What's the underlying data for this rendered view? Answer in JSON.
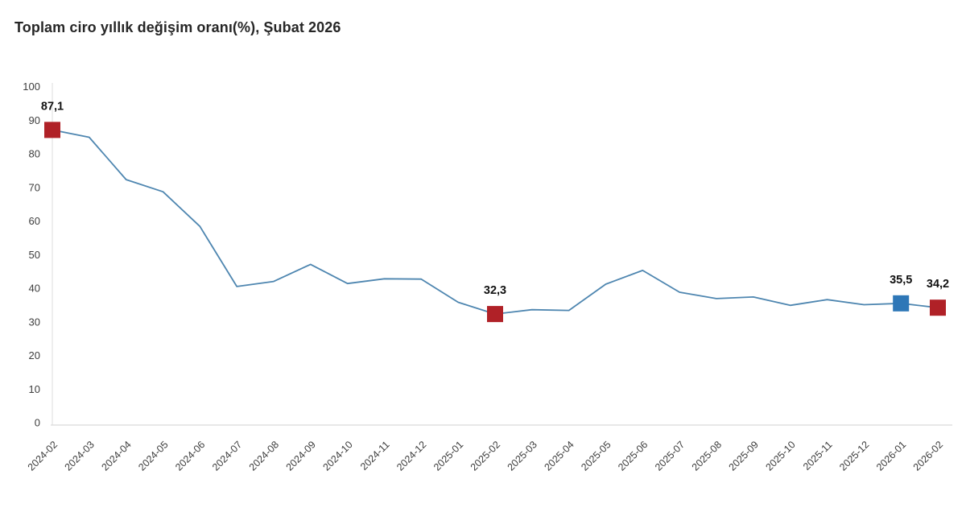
{
  "page": {
    "background": "#ffffff"
  },
  "chart_data": {
    "type": "line",
    "title": "Toplam ciro yıllık değişim oranı(%), Şubat 2026",
    "categories": [
      "2024-02",
      "2024-03",
      "2024-04",
      "2024-05",
      "2024-06",
      "2024-07",
      "2024-08",
      "2024-09",
      "2024-10",
      "2024-11",
      "2024-12",
      "2025-01",
      "2025-02",
      "2025-03",
      "2025-04",
      "2025-05",
      "2025-06",
      "2025-07",
      "2025-08",
      "2025-09",
      "2025-10",
      "2025-11",
      "2025-12",
      "2026-01",
      "2026-02"
    ],
    "values": [
      87.1,
      84.9,
      72.3,
      68.7,
      58.4,
      40.5,
      42.0,
      47.1,
      41.4,
      42.8,
      42.7,
      35.8,
      32.3,
      33.6,
      33.4,
      41.2,
      45.3,
      38.8,
      36.9,
      37.4,
      34.9,
      36.6,
      35.1,
      35.5,
      34.2
    ],
    "xlabel": "",
    "ylabel": "",
    "ylim": [
      0,
      100
    ],
    "y_ticks": [
      0,
      10,
      20,
      30,
      40,
      50,
      60,
      70,
      80,
      90,
      100
    ],
    "grid": "none",
    "legend": "none",
    "x_label_rotation": -45,
    "highlights": [
      {
        "category": "2024-02",
        "index": 0,
        "value": 87.1,
        "label": "87,1",
        "color": "#b02127"
      },
      {
        "category": "2025-02",
        "index": 12,
        "value": 32.3,
        "label": "32,3",
        "color": "#b02127"
      },
      {
        "category": "2026-01",
        "index": 23,
        "value": 35.5,
        "label": "35,5",
        "color": "#2e77b7"
      },
      {
        "category": "2026-02",
        "index": 24,
        "value": 34.2,
        "label": "34,2",
        "color": "#b02127"
      }
    ],
    "colors": {
      "line": "#4e86b0",
      "marker_red": "#b02127",
      "marker_blue": "#2e77b7",
      "axis_line": "#d9d9d9",
      "y_axis_line": "#e3e3e3",
      "tick_text": "#3d3d3d",
      "value_label_text": "#111111",
      "title_text": "#262626"
    }
  }
}
